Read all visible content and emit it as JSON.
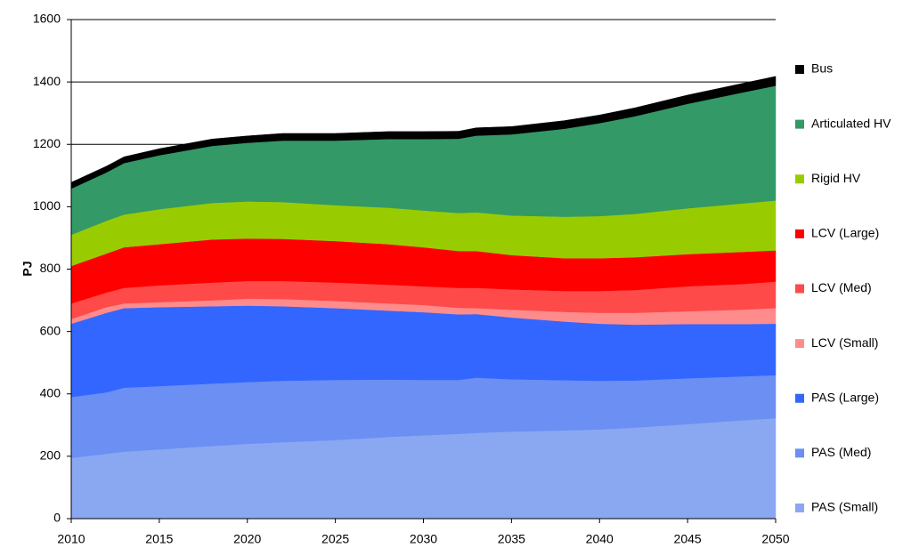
{
  "chart_data": {
    "type": "stacked-area",
    "y_label": "PJ",
    "x": [
      2010,
      2012,
      2013,
      2015,
      2018,
      2020,
      2022,
      2025,
      2028,
      2030,
      2032,
      2033,
      2035,
      2038,
      2040,
      2042,
      2045,
      2048,
      2050
    ],
    "xlim": [
      2010,
      2050
    ],
    "xticks": [
      2010,
      2015,
      2020,
      2025,
      2030,
      2035,
      2040,
      2045,
      2050
    ],
    "ylim": [
      0,
      1600
    ],
    "yticks": [
      0,
      200,
      400,
      600,
      800,
      1000,
      1200,
      1400,
      1600
    ],
    "grid": true,
    "legend": "right",
    "series": [
      {
        "name": "PAS (Small)",
        "color": "#8aa8f2",
        "values": [
          195,
          208,
          215,
          222,
          233,
          240,
          245,
          252,
          262,
          267,
          272,
          275,
          279,
          283,
          286,
          292,
          303,
          315,
          322
        ]
      },
      {
        "name": "PAS (Med)",
        "color": "#6b8ff2",
        "values": [
          195,
          197,
          205,
          203,
          200,
          198,
          197,
          193,
          184,
          178,
          173,
          177,
          168,
          161,
          156,
          151,
          147,
          141,
          138
        ]
      },
      {
        "name": "PAS (Large)",
        "color": "#3366ff",
        "values": [
          235,
          255,
          255,
          253,
          248,
          245,
          239,
          230,
          221,
          217,
          210,
          204,
          198,
          188,
          183,
          179,
          174,
          168,
          165
        ]
      },
      {
        "name": "LCV (Small)",
        "color": "#ff8c8c",
        "values": [
          15,
          18,
          15,
          16,
          19,
          22,
          23,
          23,
          23,
          23,
          21,
          19,
          25,
          31,
          35,
          38,
          41,
          46,
          50
        ]
      },
      {
        "name": "LCV (Med)",
        "color": "#ff4a4a",
        "values": [
          50,
          47,
          50,
          54,
          57,
          57,
          58,
          59,
          60,
          60,
          64,
          65,
          65,
          67,
          70,
          73,
          80,
          82,
          85
        ]
      },
      {
        "name": "LCV (Large)",
        "color": "#ff0000",
        "values": [
          120,
          125,
          130,
          132,
          138,
          136,
          135,
          133,
          130,
          125,
          118,
          118,
          110,
          105,
          105,
          105,
          103,
          103,
          100
        ]
      },
      {
        "name": "Rigid HV",
        "color": "#99cc00",
        "values": [
          100,
          105,
          105,
          112,
          117,
          119,
          118,
          115,
          117,
          118,
          122,
          124,
          127,
          133,
          135,
          139,
          147,
          155,
          160
        ]
      },
      {
        "name": "Articulated HV",
        "color": "#339966",
        "values": [
          148,
          155,
          165,
          173,
          183,
          188,
          197,
          207,
          220,
          229,
          238,
          246,
          260,
          282,
          298,
          313,
          335,
          355,
          368
        ]
      },
      {
        "name": "Bus",
        "color": "#000000",
        "values": [
          20,
          20,
          20,
          21,
          22,
          22,
          23,
          23,
          24,
          24,
          24,
          25,
          25,
          26,
          26,
          27,
          28,
          29,
          30
        ]
      }
    ]
  }
}
